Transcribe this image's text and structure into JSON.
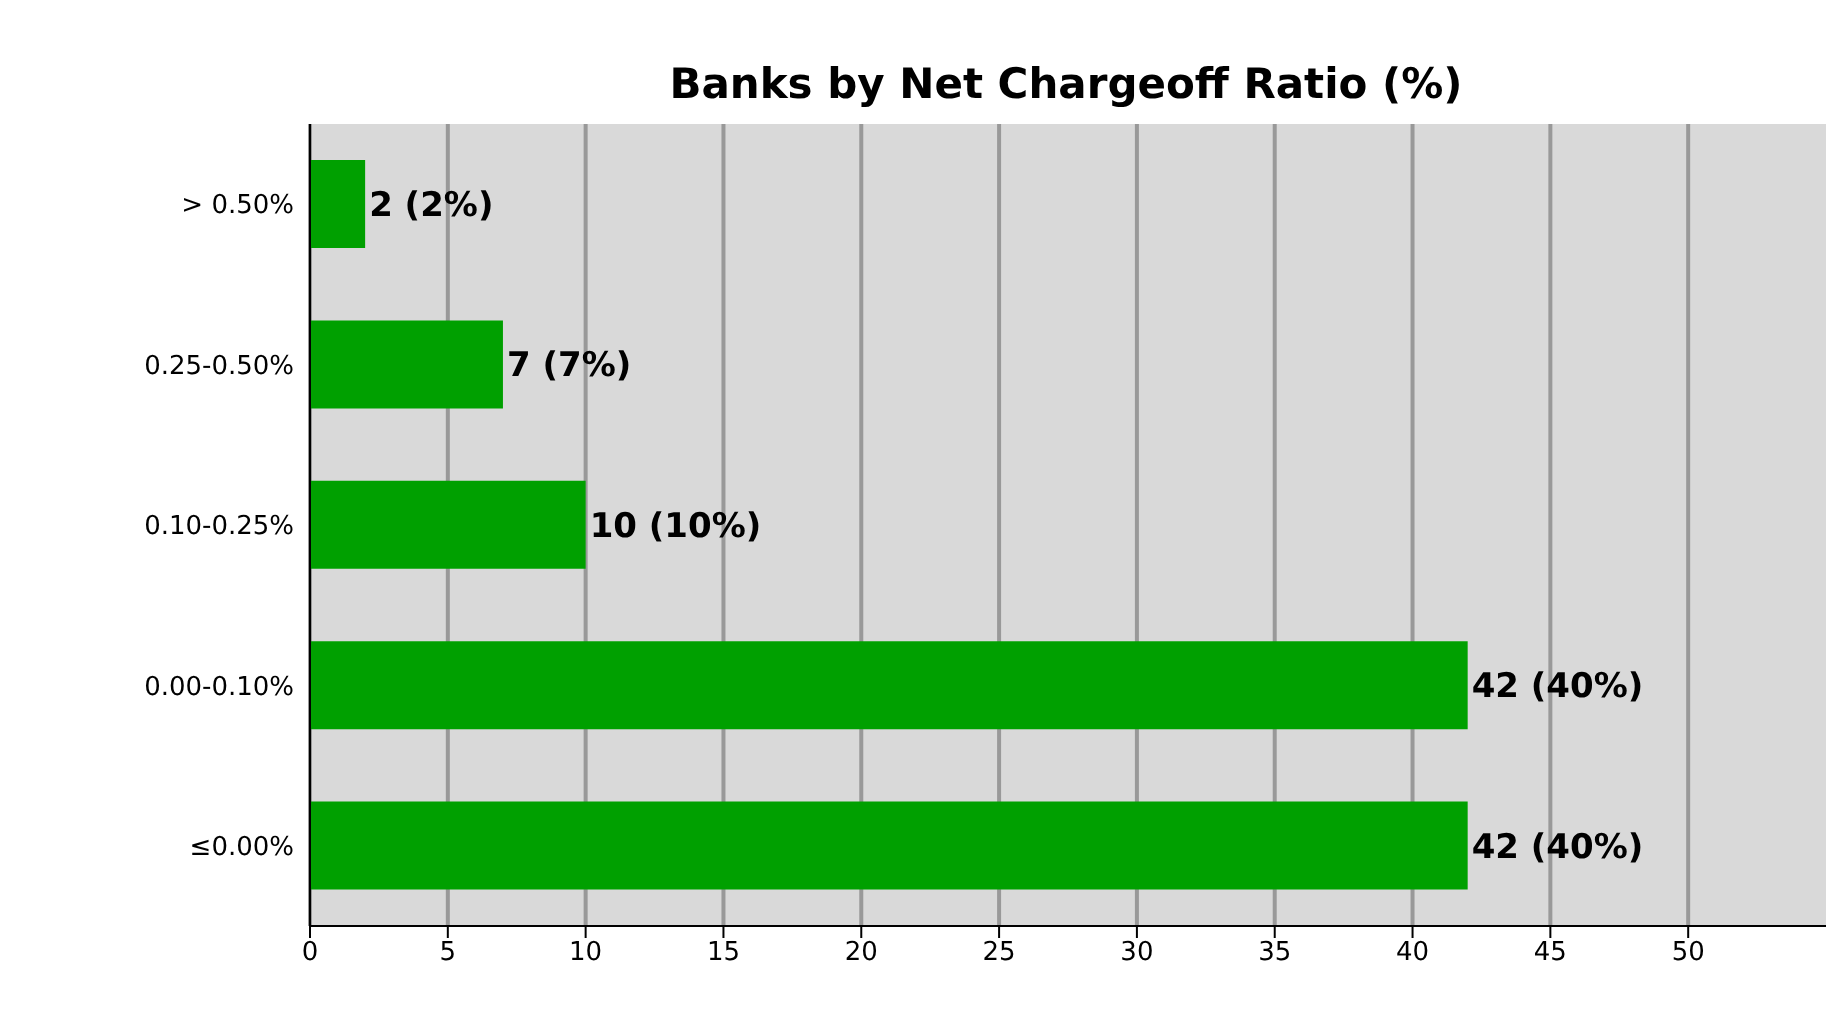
{
  "chart_data": {
    "type": "bar",
    "orientation": "horizontal",
    "title": "Banks by Net Chargeoff Ratio (%)",
    "categories": [
      "> 0.50%",
      "0.25-0.50%",
      "0.10-0.25%",
      "0.00-0.10%",
      "≤0.00%"
    ],
    "values": [
      2,
      7,
      10,
      42,
      42
    ],
    "value_labels": [
      "2 (2%)",
      "7 (7%)",
      "10 (10%)",
      "42 (40%)",
      "42 (40%)"
    ],
    "color": "#00a000",
    "xlim": [
      0,
      55
    ],
    "xticks": [
      0,
      5,
      10,
      15,
      20,
      25,
      30,
      35,
      40,
      45,
      50
    ],
    "grid": "x"
  }
}
